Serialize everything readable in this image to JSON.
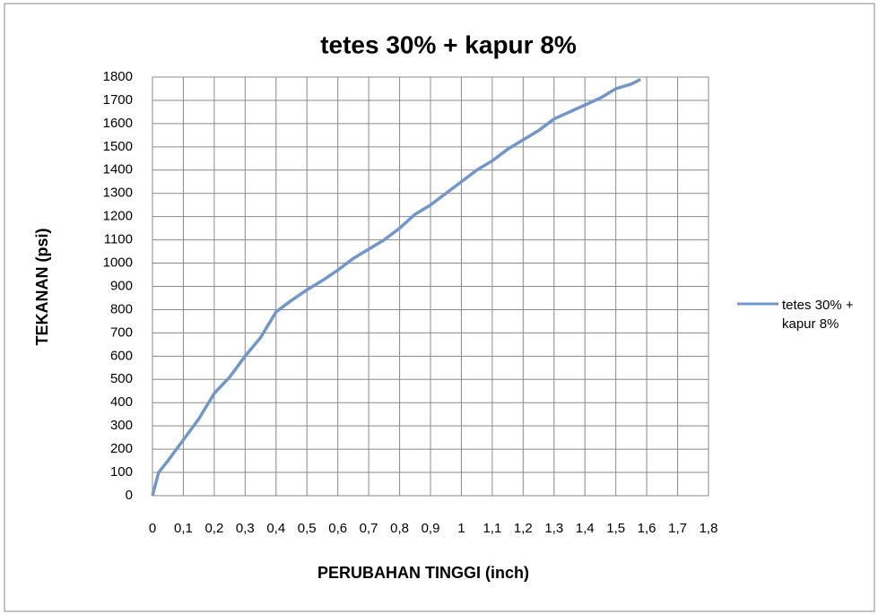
{
  "chart_data": {
    "type": "line",
    "title": "tetes 30% + kapur 8%",
    "xlabel": "PERUBAHAN TINGGI (inch)",
    "ylabel": "TEKANAN (psi)",
    "x": [
      0,
      0.02,
      0.05,
      0.1,
      0.15,
      0.2,
      0.25,
      0.3,
      0.35,
      0.4,
      0.45,
      0.5,
      0.55,
      0.6,
      0.65,
      0.7,
      0.75,
      0.8,
      0.85,
      0.9,
      0.95,
      1.0,
      1.05,
      1.1,
      1.15,
      1.2,
      1.25,
      1.3,
      1.35,
      1.4,
      1.45,
      1.5,
      1.55,
      1.58
    ],
    "series": [
      {
        "name": "tetes 30% + kapur 8%",
        "color": "#7096cc",
        "values": [
          0,
          100,
          150,
          240,
          330,
          440,
          510,
          600,
          680,
          790,
          840,
          885,
          925,
          970,
          1020,
          1060,
          1100,
          1150,
          1210,
          1250,
          1300,
          1350,
          1400,
          1440,
          1490,
          1530,
          1570,
          1620,
          1650,
          1680,
          1710,
          1750,
          1770,
          1790
        ]
      }
    ],
    "xlim": [
      0,
      1.8
    ],
    "xticks": [
      0,
      {
        "value": 0.1,
        "label": "0,1"
      },
      {
        "value": 0.2,
        "label": "0,2"
      },
      {
        "value": 0.3,
        "label": "0,3"
      },
      {
        "value": 0.4,
        "label": "0,4"
      },
      {
        "value": 0.5,
        "label": "0,5"
      },
      {
        "value": 0.6,
        "label": "0,6"
      },
      {
        "value": 0.7,
        "label": "0,7"
      },
      {
        "value": 0.8,
        "label": "0,8"
      },
      {
        "value": 0.9,
        "label": "0,9"
      },
      1,
      {
        "value": 1.1,
        "label": "1,1"
      },
      {
        "value": 1.2,
        "label": "1,2"
      },
      {
        "value": 1.3,
        "label": "1,3"
      },
      {
        "value": 1.4,
        "label": "1,4"
      },
      {
        "value": 1.5,
        "label": "1,5"
      },
      {
        "value": 1.6,
        "label": "1,6"
      },
      {
        "value": 1.7,
        "label": "1,7"
      },
      {
        "value": 1.8,
        "label": "1,8"
      }
    ],
    "ylim": [
      0,
      1800
    ],
    "yticks": [
      0,
      100,
      200,
      300,
      400,
      500,
      600,
      700,
      800,
      900,
      1000,
      1100,
      1200,
      1300,
      1400,
      1500,
      1600,
      1700,
      1800
    ],
    "grid": true,
    "legend": "right"
  }
}
